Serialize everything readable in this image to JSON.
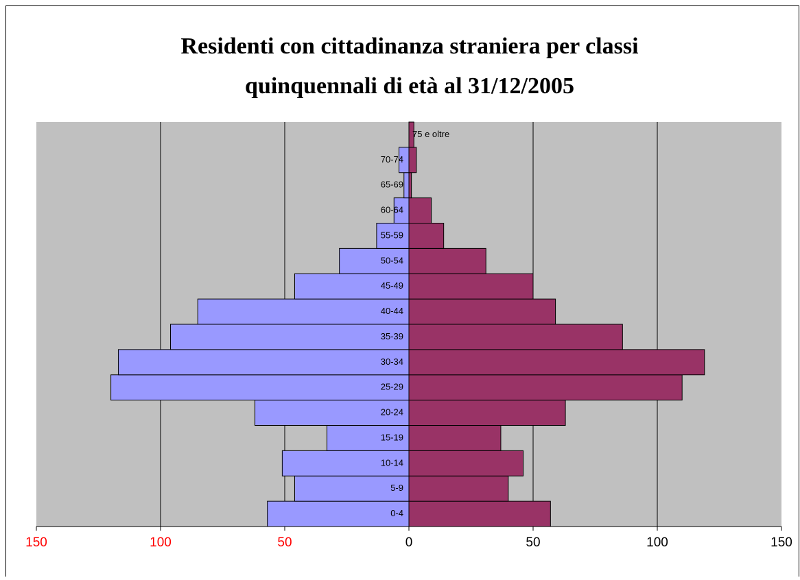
{
  "chart_data": {
    "type": "pyramid",
    "title": [
      "Residenti con cittadinanza straniera per classi",
      "quinquennali di età al 31/12/2005"
    ],
    "categories": [
      "0-4",
      "5-9",
      "10-14",
      "15-19",
      "20-24",
      "25-29",
      "30-34",
      "35-39",
      "40-44",
      "45-49",
      "50-54",
      "55-59",
      "60-64",
      "65-69",
      "70-74",
      "75 e oltre"
    ],
    "series": [
      {
        "color": "#9999ff",
        "values": [
          -57,
          -46,
          -51,
          -33,
          -62,
          -120,
          -117,
          -96,
          -85,
          -46,
          -28,
          -13,
          -6,
          -2,
          -4,
          0
        ]
      },
      {
        "color": "#993366",
        "values": [
          57,
          40,
          46,
          37,
          63,
          110,
          119,
          86,
          59,
          50,
          31,
          14,
          9,
          1,
          3,
          2
        ]
      }
    ],
    "xlim": [
      -150,
      150
    ],
    "xticks": [
      {
        "value": -150,
        "label": "150"
      },
      {
        "value": -100,
        "label": "100"
      },
      {
        "value": -50,
        "label": "50"
      },
      0,
      50,
      100,
      150
    ],
    "grid": true
  }
}
